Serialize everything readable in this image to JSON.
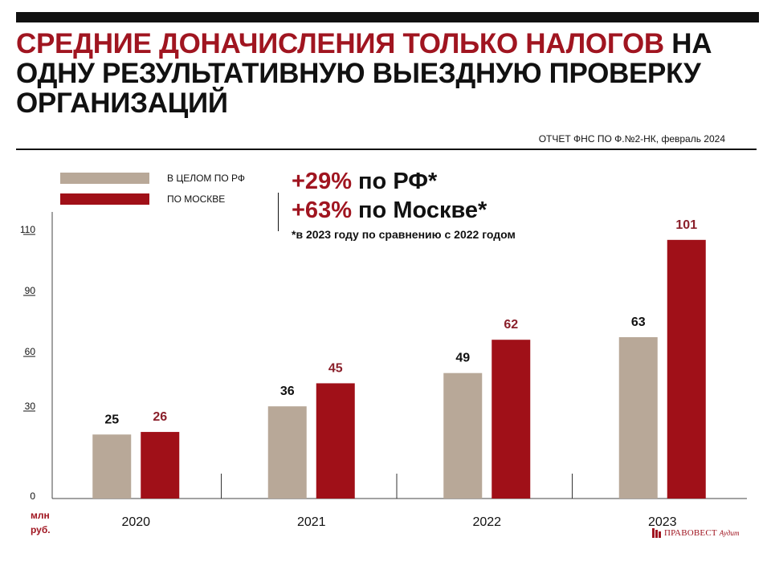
{
  "header": {
    "title_accent": "СРЕДНИЕ ДОНАЧИСЛЕНИЯ ТОЛЬКО НАЛОГОВ",
    "title_rest": " НА ОДНУ РЕЗУЛЬТАТИВНУЮ ВЫЕЗДНУЮ ПРОВЕРКУ ОРГАНИЗАЦИЙ",
    "source": "ОТЧЕТ ФНС ПО Ф.№2-НК, февраль 2024"
  },
  "note": {
    "line1_pct": "+29%",
    "line1_rest": " по РФ*",
    "line2_pct": "+63%",
    "line2_rest": " по Москве*",
    "footnote": "*в 2023 году по сравнению с 2022 годом"
  },
  "logo": {
    "name": "ПРАВОВЕСТ",
    "sub": "Аудит"
  },
  "colors": {
    "rf": "#b8a898",
    "moscow": "#a01018",
    "accent": "#a01520",
    "value_moscow": "#8a1f2a"
  },
  "chart_data": {
    "type": "bar",
    "categories": [
      "2020",
      "2021",
      "2022",
      "2023"
    ],
    "series": [
      {
        "name": "В ЦЕЛОМ ПО РФ",
        "values": [
          25,
          36,
          49,
          63
        ],
        "color": "#b8a898"
      },
      {
        "name": "ПО МОСКВЕ",
        "values": [
          26,
          45,
          62,
          101
        ],
        "color": "#a01018"
      }
    ],
    "yticks": [
      {
        "label": "0",
        "value": 0
      },
      {
        "label": "30",
        "value": 30
      },
      {
        "label": "60",
        "value": 60
      },
      {
        "label": "90",
        "value": 90
      },
      {
        "label": "110",
        "value": 110
      }
    ],
    "ylabel": "млн руб.",
    "legend": "top-left",
    "grid": false
  }
}
